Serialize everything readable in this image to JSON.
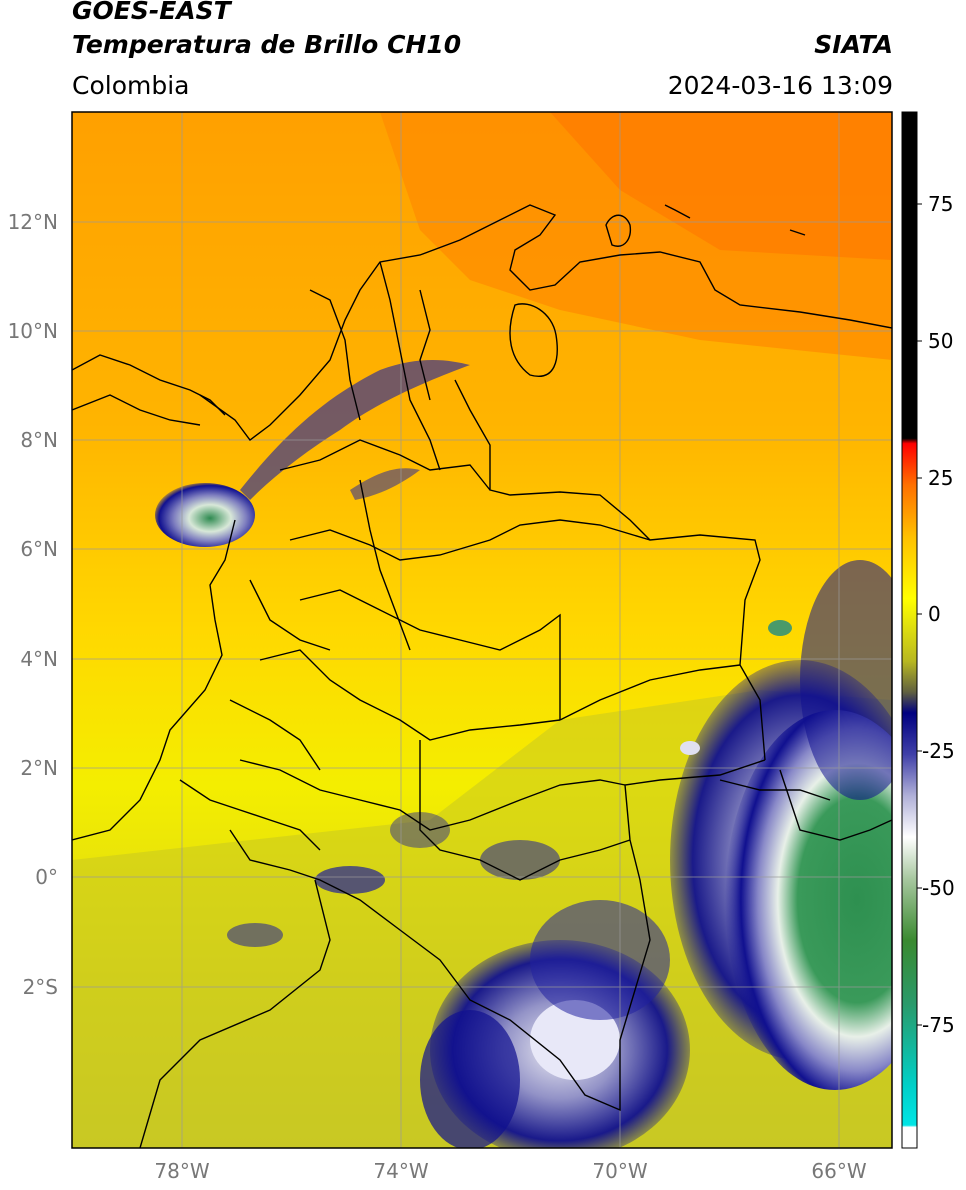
{
  "header": {
    "satellite": "GOES-EAST",
    "product": "Temperatura de Brillo CH10",
    "region": "Colombia",
    "agency": "SIATA",
    "datetime": "2024-03-16 13:09"
  },
  "map": {
    "lon_range": [
      -80,
      -65
    ],
    "lat_range": [
      -5,
      14
    ],
    "lon_ticks": [
      "78°W",
      "74°W",
      "70°W",
      "66°W"
    ],
    "lat_ticks": [
      "12°N",
      "10°N",
      "8°N",
      "6°N",
      "4°N",
      "2°N",
      "0°",
      "2°S"
    ],
    "gridlines": true,
    "borders": "Colombia departments, coastlines, international boundaries"
  },
  "colorbar": {
    "ticks": [
      "75",
      "50",
      "25",
      "0",
      "-25",
      "-50",
      "-75"
    ],
    "range": [
      -95,
      90
    ],
    "colors": {
      "hot": "#000000",
      "red": "#ff0000",
      "orange": "#ff8c00",
      "yellow": "#ffff00",
      "olive": "#b8b820",
      "navy": "#000080",
      "white": "#ffffff",
      "green": "#2e8b3e",
      "cyan": "#00e0e0"
    }
  }
}
